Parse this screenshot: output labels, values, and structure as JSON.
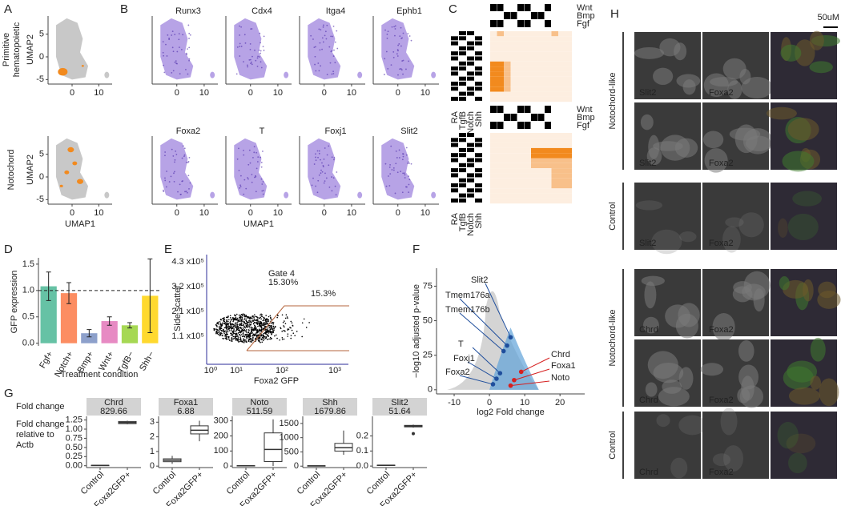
{
  "panel_labels": [
    "A",
    "B",
    "C",
    "D",
    "E",
    "F",
    "G",
    "H"
  ],
  "umap": {
    "xlabel": "UMAP1",
    "ylabel": "UMAP2",
    "xlim": [
      -9,
      15
    ],
    "ylim": [
      -6,
      9
    ],
    "xticks": [
      0,
      10
    ],
    "yticks": [
      -5,
      0,
      5
    ]
  },
  "panel_a": {
    "rows": [
      [
        "Primitive",
        "hematopoietic"
      ],
      [
        "Notochord"
      ]
    ]
  },
  "panel_b": {
    "genes": [
      "Runx3",
      "Cdx4",
      "Itga4",
      "Ephb1",
      "Foxa2",
      "T",
      "Foxj1",
      "Slit2"
    ]
  },
  "panel_c": {
    "pathways": [
      "Wnt",
      "Bmp",
      "Fgf"
    ],
    "factors": [
      "RA",
      "TgfB",
      "Notch",
      "Shh"
    ]
  },
  "panel_e": {
    "xlabel": "Foxa2 GFP",
    "ylabel": "Side scatter",
    "gate": "Gate 4",
    "gate_pct": "15.30%",
    "pct": "15.3%",
    "ytick_labels": [
      "1.1 x10⁵",
      "2.1 x10⁵",
      "3.2 x10⁵",
      "4.3 x10⁵"
    ],
    "xtick_labels": [
      "10⁰",
      "10¹",
      "10²",
      "10³"
    ]
  },
  "panel_g": {
    "fold_change_label": "Fold change",
    "ylabel": [
      "Fold change",
      "relative to",
      "Actb"
    ]
  },
  "panel_h": {
    "scale_bar": "50uM",
    "groups": [
      "Notochord-like",
      "Control",
      "Notochord-like",
      "Control"
    ],
    "rows": [
      [
        "Slit2",
        "Foxa2"
      ],
      [
        "Slit2",
        "Foxa2"
      ],
      [
        "Slit2",
        "Foxa2"
      ],
      [
        "Chrd",
        "Foxa2"
      ],
      [
        "Chrd",
        "Foxa2"
      ],
      [
        "Chrd",
        "Foxa2"
      ]
    ]
  },
  "chart_data": [
    {
      "type": "bar",
      "xlabel": "Treatment condition",
      "ylabel": "GFP expression",
      "categories": [
        "Fgf+",
        "Notch+",
        "Bmp+",
        "Wnt+",
        "TgfB−",
        "Shh−"
      ],
      "values": [
        1.08,
        0.95,
        0.19,
        0.42,
        0.34,
        0.9
      ],
      "errors": [
        0.27,
        0.2,
        0.07,
        0.08,
        0.05,
        0.7
      ],
      "colors": [
        "#66c2a5",
        "#fc8d62",
        "#8da0cb",
        "#e78ac3",
        "#a6d854",
        "#ffd92f"
      ],
      "reference_line": 1,
      "ylim": [
        -0.05,
        1.62
      ],
      "yticks": [
        {
          "value": 0,
          "label": "0.0"
        },
        {
          "value": 0.5,
          "label": "0.5"
        },
        {
          "value": 1,
          "label": "1.0"
        },
        {
          "value": 1.5,
          "label": "1.5"
        }
      ]
    },
    {
      "type": "box",
      "title": "Chrd",
      "subtitle": "829.66",
      "categories": [
        "Control",
        "Foxa2GFP+"
      ],
      "min": [
        0.005,
        1.13
      ],
      "q1": [
        0.008,
        1.15
      ],
      "median": [
        0.01,
        1.18
      ],
      "q3": [
        0.012,
        1.21
      ],
      "max": [
        0.015,
        1.23
      ],
      "ylim": [
        -0.05,
        1.35
      ],
      "yticks": [
        {
          "value": 0,
          "label": "0.00"
        },
        {
          "value": 0.25,
          "label": "0.25"
        },
        {
          "value": 0.5,
          "label": "0.50"
        },
        {
          "value": 0.75,
          "label": "0.75"
        },
        {
          "value": 1,
          "label": "1.00"
        },
        {
          "value": 1.25,
          "label": "1.25"
        }
      ]
    },
    {
      "type": "box",
      "title": "Foxa1",
      "subtitle": "6.88",
      "categories": [
        "Control",
        "Foxa2GFP+"
      ],
      "min": [
        0.15,
        1.7
      ],
      "q1": [
        0.3,
        2.2
      ],
      "median": [
        0.4,
        2.45
      ],
      "q3": [
        0.5,
        2.75
      ],
      "max": [
        0.7,
        3.1
      ],
      "ylim": [
        -0.1,
        3.4
      ],
      "yticks": [
        0,
        1,
        2,
        3
      ]
    },
    {
      "type": "box",
      "title": "Noto",
      "subtitle": "511.59",
      "categories": [
        "Control",
        "Foxa2GFP+"
      ],
      "min": [
        0,
        0
      ],
      "q1": [
        1,
        30
      ],
      "median": [
        2,
        110
      ],
      "q3": [
        3,
        220
      ],
      "max": [
        5,
        310
      ],
      "ylim": [
        -10,
        330
      ],
      "yticks": [
        0,
        100,
        200,
        300
      ]
    },
    {
      "type": "box",
      "title": "Shh",
      "subtitle": "1679.86",
      "categories": [
        "Control",
        "Foxa2GFP+"
      ],
      "min": [
        0,
        400
      ],
      "q1": [
        5,
        530
      ],
      "median": [
        10,
        650
      ],
      "q3": [
        15,
        800
      ],
      "max": [
        20,
        1250
      ],
      "ylim": [
        -50,
        1750
      ],
      "yticks": [
        0,
        500,
        1000,
        1500
      ]
    },
    {
      "type": "box",
      "title": "Slit2",
      "subtitle": "51.64",
      "categories": [
        "Control",
        "Foxa2GFP+"
      ],
      "min": [
        0.003,
        0.255
      ],
      "q1": [
        0.004,
        0.26
      ],
      "median": [
        0.005,
        0.265
      ],
      "q3": [
        0.006,
        0.27
      ],
      "max": [
        0.007,
        0.275
      ],
      "outliers": [
        [],
        [
          0.215
        ]
      ],
      "ylim": [
        -0.01,
        0.33
      ],
      "yticks": [
        {
          "value": 0,
          "label": "0.0"
        },
        {
          "value": 0.1,
          "label": "0.1"
        },
        {
          "value": 0.2,
          "label": "0.2"
        }
      ]
    },
    {
      "type": "scatter",
      "xlabel": "log2 Fold change",
      "ylabel": "−log10 adjusted p-value",
      "xlim": [
        -15,
        27
      ],
      "ylim": [
        -3,
        88
      ],
      "xticks": [
        -10,
        0,
        10,
        20
      ],
      "yticks": [
        0,
        25,
        50,
        75
      ],
      "labels": [
        "Slit2",
        "Tmem176a",
        "Tmem176b",
        "T",
        "Foxj1",
        "Foxa2",
        "Chrd",
        "Foxa1",
        "Noto"
      ],
      "x": [
        6,
        5,
        4,
        3,
        2,
        1,
        9,
        7,
        6
      ],
      "y": [
        38,
        32,
        28,
        12,
        8,
        4,
        13,
        7,
        3
      ],
      "colors": [
        "#1f4e9c",
        "#1f4e9c",
        "#1f4e9c",
        "#1f4e9c",
        "#1f4e9c",
        "#1f4e9c",
        "#d62020",
        "#d62020",
        "#d62020"
      ]
    }
  ]
}
